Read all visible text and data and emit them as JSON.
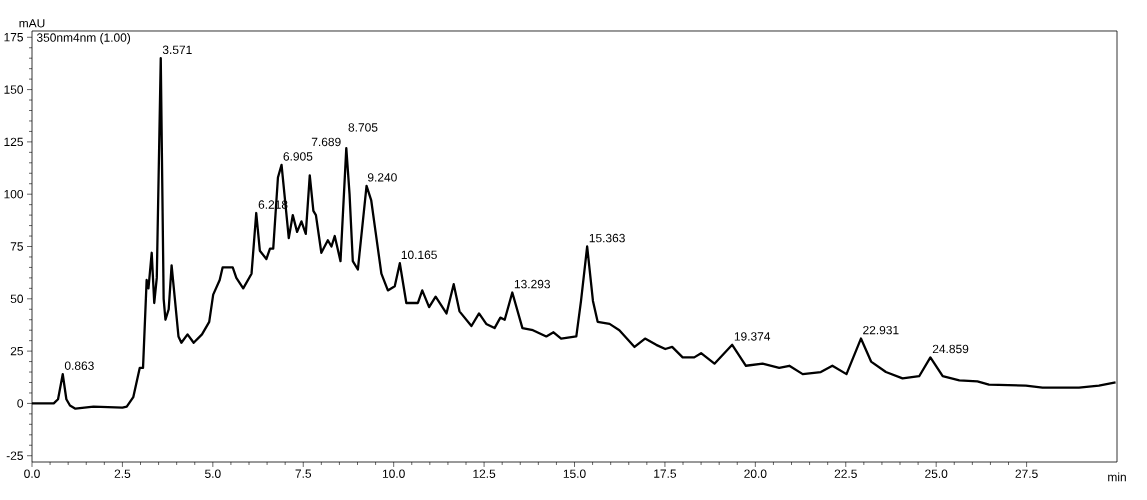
{
  "chart_data": {
    "type": "line",
    "xlabel": "min",
    "ylabel": "mAU",
    "annotations": [
      "350nm4nm (1.00)",
      {
        "text": "0.863",
        "x": 0.863,
        "y": 14
      },
      {
        "text": "3.571",
        "x": 3.571,
        "y": 165
      },
      {
        "text": "6.218",
        "x": 6.218,
        "y": 91
      },
      {
        "text": "6.905",
        "x": 6.905,
        "y": 114
      },
      {
        "text": "7.689",
        "x": 7.689,
        "y": 109
      },
      {
        "text": "8.705",
        "x": 8.705,
        "y": 122
      },
      {
        "text": "9.240",
        "x": 9.24,
        "y": 104
      },
      {
        "text": "10.165",
        "x": 10.165,
        "y": 67
      },
      {
        "text": "13.293",
        "x": 13.293,
        "y": 53
      },
      {
        "text": "15.363",
        "x": 15.363,
        "y": 75
      },
      {
        "text": "19.374",
        "x": 19.374,
        "y": 28
      },
      {
        "text": "22.931",
        "x": 22.931,
        "y": 31
      },
      {
        "text": "24.859",
        "x": 24.859,
        "y": 22
      }
    ],
    "series": [
      {
        "color": "#000000",
        "line_style": "solid",
        "x": [
          0,
          0.6,
          0.72,
          0.85,
          0.95,
          1.05,
          1.2,
          1.7,
          2.5,
          2.62,
          2.8,
          2.98,
          3.07,
          3.17,
          3.22,
          3.31,
          3.38,
          3.45,
          3.56,
          3.64,
          3.69,
          3.78,
          3.86,
          3.95,
          4.05,
          4.13,
          4.3,
          4.47,
          4.7,
          4.9,
          5.01,
          5.19,
          5.27,
          5.55,
          5.65,
          5.84,
          6.07,
          6.2,
          6.3,
          6.48,
          6.58,
          6.67,
          6.8,
          6.9,
          6.98,
          7.1,
          7.21,
          7.33,
          7.45,
          7.57,
          7.68,
          7.78,
          7.85,
          8.0,
          8.18,
          8.28,
          8.37,
          8.53,
          8.69,
          8.78,
          8.87,
          9.01,
          9.25,
          9.38,
          9.5,
          9.66,
          9.84,
          10.03,
          10.17,
          10.35,
          10.53,
          10.67,
          10.79,
          10.98,
          11.16,
          11.46,
          11.66,
          11.82,
          12.15,
          12.36,
          12.56,
          12.79,
          12.95,
          13.07,
          13.28,
          13.56,
          13.85,
          14.22,
          14.42,
          14.63,
          15.05,
          15.18,
          15.35,
          15.51,
          15.64,
          15.97,
          16.24,
          16.66,
          16.95,
          17.26,
          17.51,
          17.7,
          17.99,
          18.31,
          18.5,
          18.87,
          19.36,
          19.74,
          20.2,
          20.66,
          20.94,
          21.31,
          21.81,
          22.13,
          22.52,
          22.92,
          23.2,
          23.61,
          24.07,
          24.53,
          24.84,
          25.18,
          25.64,
          26.14,
          26.46,
          27.48,
          27.94,
          28.95,
          29.5,
          29.96
        ],
        "values": [
          0,
          0,
          2,
          14,
          2,
          -1,
          -2.5,
          -1.5,
          -2,
          -1.5,
          3,
          17,
          17,
          59,
          55,
          72,
          48,
          60,
          165,
          50,
          40,
          45,
          66,
          50,
          32,
          29,
          33,
          29,
          33,
          39,
          52,
          59,
          65,
          65,
          60,
          55,
          62,
          91,
          73,
          69,
          74,
          74,
          108,
          114,
          100,
          79,
          90,
          82,
          87,
          81,
          109,
          92,
          90,
          72,
          78,
          75,
          80,
          68,
          122,
          100,
          68,
          64,
          104,
          97,
          82,
          62,
          54,
          56,
          67,
          48,
          48,
          48,
          54,
          46,
          51,
          43,
          57,
          44,
          37,
          43,
          38,
          36,
          41,
          40,
          53,
          36,
          35,
          32,
          34,
          31,
          32,
          49,
          75,
          49,
          39,
          38,
          35,
          27,
          31,
          28,
          26,
          27,
          22,
          22,
          24,
          19,
          28,
          18,
          19,
          17,
          18,
          14,
          15,
          18,
          14,
          31,
          20,
          15,
          12,
          13,
          22,
          13,
          11,
          10.5,
          9,
          8.5,
          7.5,
          7.5,
          8.5,
          10
        ]
      }
    ],
    "xlim": [
      0,
      30
    ],
    "ylim": [
      -28,
      178
    ],
    "xticks": [
      {
        "value": 0,
        "label": "0.0"
      },
      {
        "value": 2.5,
        "label": "2.5"
      },
      {
        "value": 5,
        "label": "5.0"
      },
      {
        "value": 7.5,
        "label": "7.5"
      },
      {
        "value": 10,
        "label": "10.0"
      },
      {
        "value": 12.5,
        "label": "12.5"
      },
      {
        "value": 15,
        "label": "15.0"
      },
      {
        "value": 17.5,
        "label": "17.5"
      },
      {
        "value": 20,
        "label": "20.0"
      },
      {
        "value": 22.5,
        "label": "22.5"
      },
      {
        "value": 25,
        "label": "25.0"
      },
      {
        "value": 27.5,
        "label": "27.5"
      }
    ],
    "yticks": [
      -25,
      0,
      25,
      50,
      75,
      100,
      125,
      150,
      175
    ]
  }
}
